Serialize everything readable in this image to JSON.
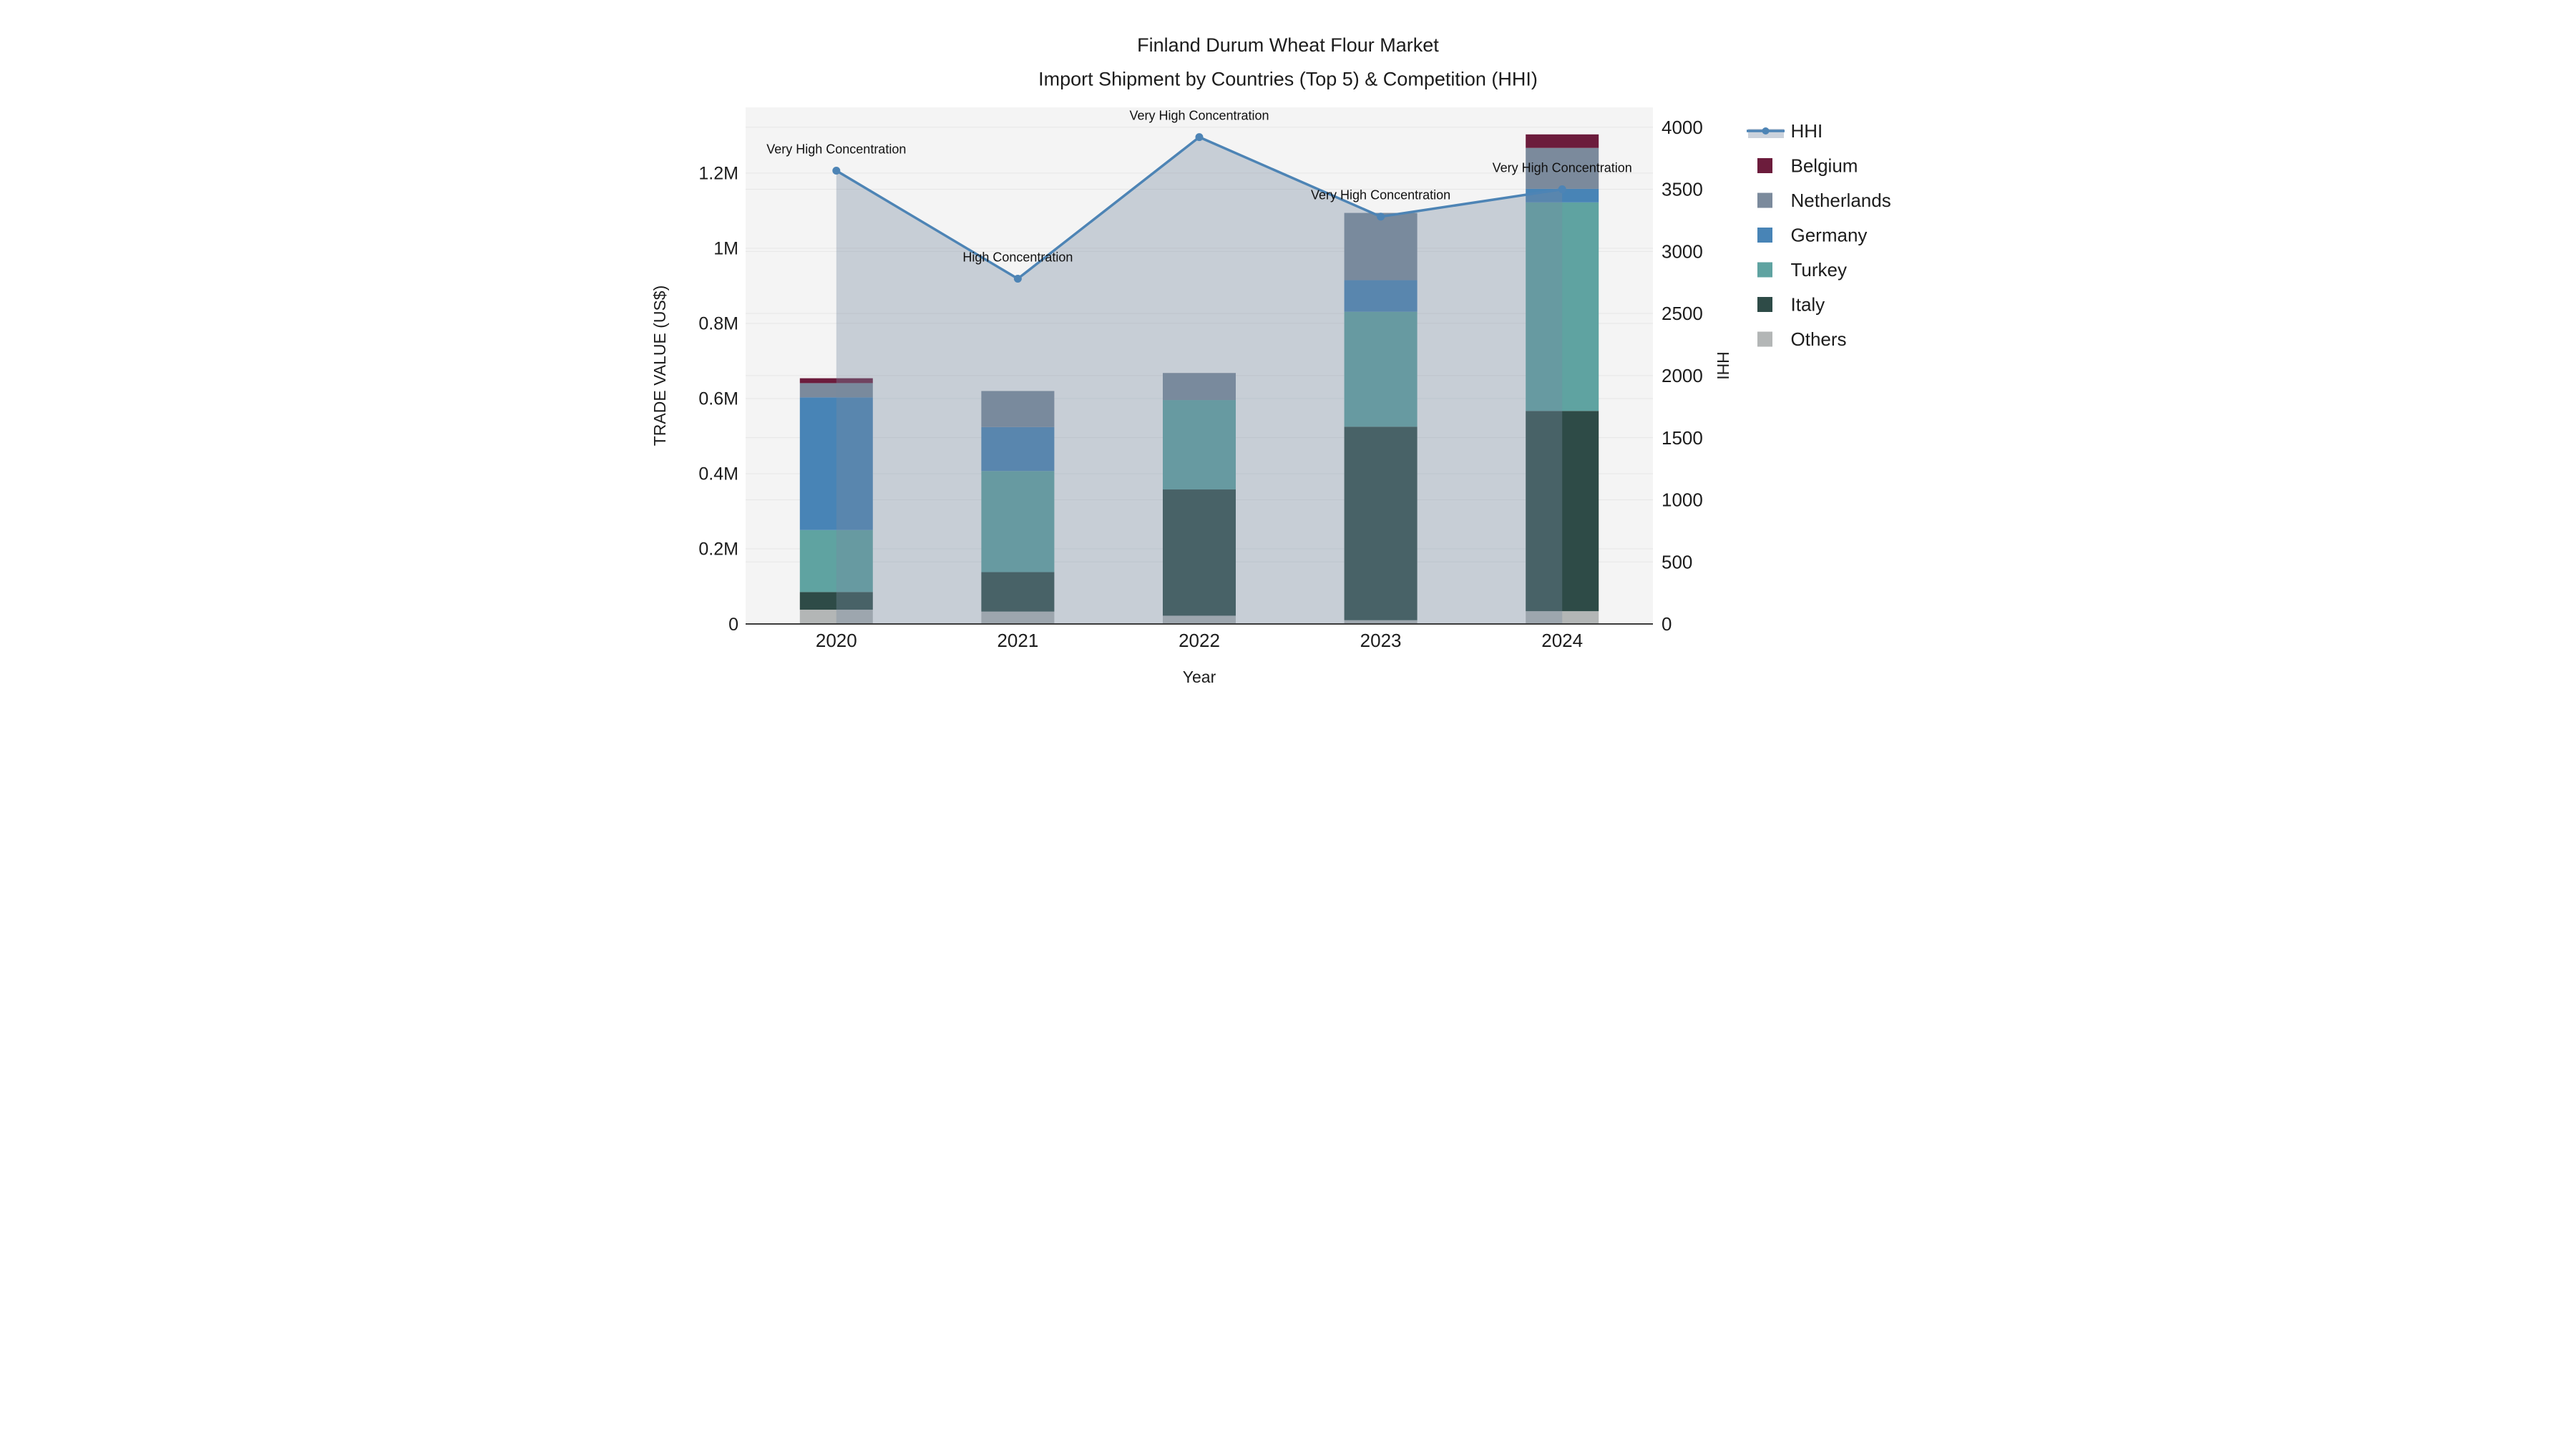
{
  "title": {
    "line1": "Finland Durum Wheat Flour Market",
    "line2": "Import Shipment by Countries (Top 5) & Competition (HHI)"
  },
  "chart_data": {
    "type": "bar+line",
    "title": "Finland Durum Wheat Flour Market",
    "subtitle": "Import Shipment by Countries (Top 5) & Competition (HHI)",
    "categories": [
      "2020",
      "2021",
      "2022",
      "2023",
      "2024"
    ],
    "stack_order_bottom_to_top": [
      "Others",
      "Italy",
      "Turkey",
      "Germany",
      "Netherlands",
      "Belgium"
    ],
    "bar_series": [
      {
        "name": "Others",
        "color": "#B3B6B6",
        "values": [
          38000,
          33000,
          22000,
          10000,
          34000
        ]
      },
      {
        "name": "Italy",
        "color": "#2E4B47",
        "values": [
          47000,
          105000,
          336000,
          515000,
          533000
        ]
      },
      {
        "name": "Turkey",
        "color": "#5FA3A1",
        "values": [
          165000,
          269000,
          238000,
          306000,
          555000
        ]
      },
      {
        "name": "Germany",
        "color": "#4884B6",
        "values": [
          353000,
          117000,
          0,
          84000,
          36000
        ]
      },
      {
        "name": "Netherlands",
        "color": "#7B8A9C",
        "values": [
          38000,
          96000,
          72000,
          179000,
          109000
        ]
      },
      {
        "name": "Belgium",
        "color": "#6C1C3C",
        "values": [
          13000,
          0,
          0,
          0,
          36000
        ]
      }
    ],
    "bar_totals": [
      654000,
      620000,
      668000,
      1094000,
      1303000
    ],
    "line_series": {
      "name": "HHI",
      "color": "#4D84B5",
      "fill_rgba": "rgba(120,138,160,0.36)",
      "values": [
        3650,
        2780,
        3920,
        3280,
        3500
      ]
    },
    "annotations": [
      "Very High Concentration",
      "High Concentration",
      "Very High Concentration",
      "Very High Concentration",
      "Very High Concentration"
    ],
    "x_axis": {
      "title": "Year",
      "labels": [
        "2020",
        "2021",
        "2022",
        "2023",
        "2024"
      ]
    },
    "y_left": {
      "title": "TRADE VALUE (US$)",
      "max": 1375000,
      "ticks": [
        {
          "label": "0",
          "value": 0
        },
        {
          "label": "0.2M",
          "value": 200000
        },
        {
          "label": "0.4M",
          "value": 400000
        },
        {
          "label": "0.6M",
          "value": 600000
        },
        {
          "label": "0.8M",
          "value": 800000
        },
        {
          "label": "1M",
          "value": 1000000
        },
        {
          "label": "1.2M",
          "value": 1200000
        }
      ]
    },
    "y_right": {
      "title": "HHI",
      "max": 4160,
      "ticks": [
        {
          "label": "0",
          "value": 0
        },
        {
          "label": "500",
          "value": 500
        },
        {
          "label": "1000",
          "value": 1000
        },
        {
          "label": "1500",
          "value": 1500
        },
        {
          "label": "2000",
          "value": 2000
        },
        {
          "label": "2500",
          "value": 2500
        },
        {
          "label": "3000",
          "value": 3000
        },
        {
          "label": "3500",
          "value": 3500
        },
        {
          "label": "4000",
          "value": 4000
        }
      ]
    },
    "grid": true,
    "legend_position": "right"
  },
  "legend": {
    "items": [
      {
        "label": "HHI",
        "type": "line",
        "color": "#4D84B5",
        "band_color": "#CBD2DC"
      },
      {
        "label": "Belgium",
        "type": "swatch",
        "color": "#6C1C3C"
      },
      {
        "label": "Netherlands",
        "type": "swatch",
        "color": "#7B8A9C"
      },
      {
        "label": "Germany",
        "type": "swatch",
        "color": "#4884B6"
      },
      {
        "label": "Turkey",
        "type": "swatch",
        "color": "#5FA3A1"
      },
      {
        "label": "Italy",
        "type": "swatch",
        "color": "#2E4B47"
      },
      {
        "label": "Others",
        "type": "swatch",
        "color": "#B3B6B6"
      }
    ]
  },
  "colors": {
    "figure_bg": "#FFFFFF",
    "plot_bg": "#F4F4F4",
    "grid": "#E6E6E6",
    "axis_line": "#3C3C3C",
    "text": "#1C1C1C",
    "annotation_text": "#111111"
  }
}
